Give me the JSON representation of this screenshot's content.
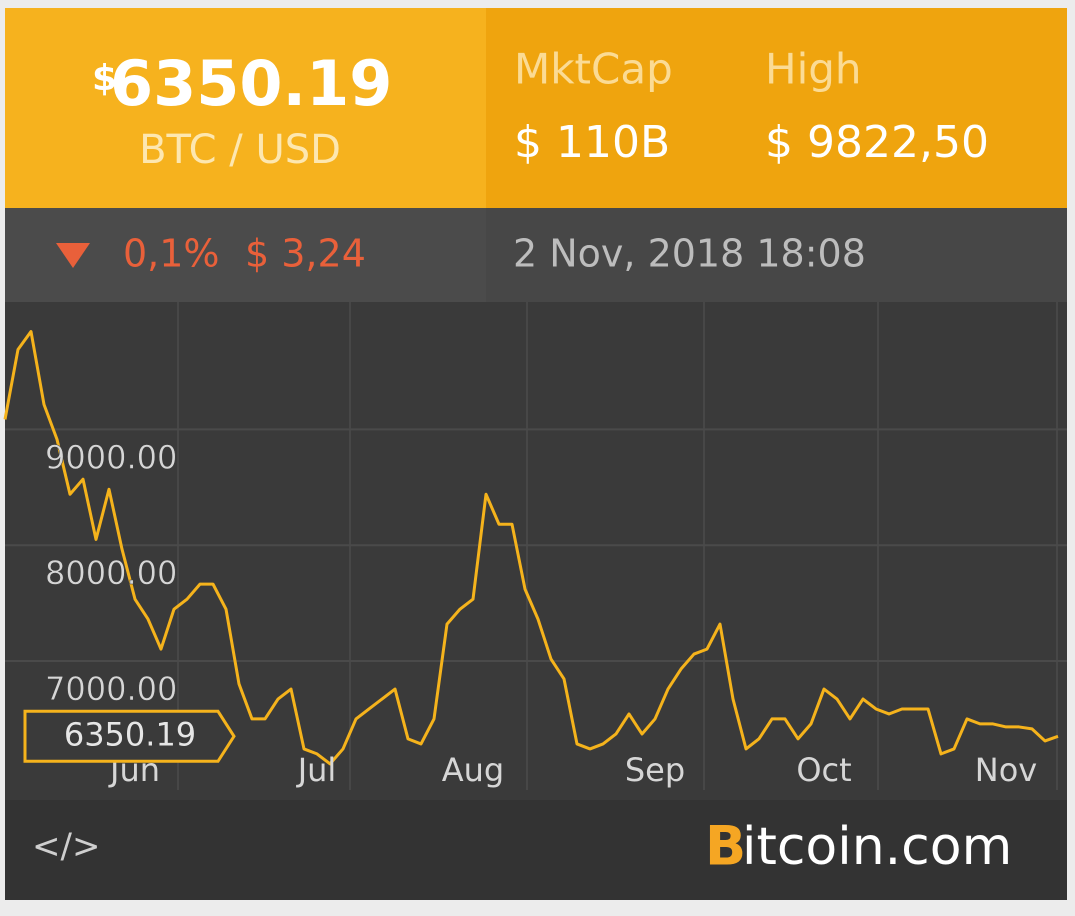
{
  "header": {
    "price_symbol": "$",
    "price": "6350.19",
    "pair": "BTC / USD",
    "mktcap_label": "MktCap",
    "mktcap_value": "$ 110B",
    "high_label": "High",
    "high_value": "$ 9822,50",
    "change_percent": "0,1%",
    "change_amount": "$ 3,24",
    "timestamp": "2 Nov, 2018 18:08"
  },
  "footer": {
    "embed_icon": "</>",
    "logo_initial": "B",
    "logo_rest": "itcoin.com"
  },
  "chart_data": {
    "type": "line",
    "color": "#f5b31c",
    "grid": true,
    "categories": [
      null,
      null,
      null,
      null,
      null,
      null,
      null,
      null,
      null,
      null,
      "Jun",
      null,
      null,
      null,
      null,
      null,
      null,
      null,
      null,
      null,
      null,
      null,
      null,
      null,
      "Jul",
      null,
      null,
      null,
      null,
      null,
      null,
      null,
      null,
      null,
      null,
      null,
      "Aug",
      null,
      null,
      null,
      null,
      null,
      null,
      null,
      null,
      null,
      null,
      null,
      null,
      null,
      "Sep",
      null,
      null,
      null,
      null,
      null,
      null,
      null,
      null,
      null,
      null,
      null,
      null,
      "Oct",
      null,
      null,
      null,
      null,
      null,
      null,
      null,
      null,
      null,
      null,
      null,
      null,
      null,
      "Nov",
      null,
      null,
      null,
      null
    ],
    "values": [
      9086,
      9690,
      9845,
      9215,
      8914,
      8440,
      8570,
      8050,
      8483,
      7966,
      7534,
      7362,
      7103,
      7448,
      7534,
      7664,
      7664,
      7448,
      6802,
      6500,
      6500,
      6672,
      6758,
      6241,
      6198,
      6112,
      6241,
      6500,
      6586,
      6672,
      6758,
      6328,
      6284,
      6500,
      7319,
      7448,
      7534,
      8440,
      8181,
      8181,
      7621,
      7362,
      7017,
      6845,
      6284,
      6241,
      6284,
      6370,
      6543,
      6370,
      6500,
      6758,
      6931,
      7060,
      7103,
      7319,
      6672,
      6241,
      6328,
      6500,
      6500,
      6328,
      6457,
      6758,
      6672,
      6500,
      6672,
      6586,
      6543,
      6586,
      6586,
      6586,
      6198,
      6241,
      6500,
      6457,
      6457,
      6431,
      6431,
      6414,
      6310,
      6350
    ],
    "ylim": [
      5800,
      10100
    ],
    "yticks": [
      {
        "value": 7000,
        "label": "7000.00"
      },
      {
        "value": 8000,
        "label": "8000.00"
      },
      {
        "value": 9000,
        "label": "9000.00"
      }
    ],
    "price_marker": 6350.19
  }
}
